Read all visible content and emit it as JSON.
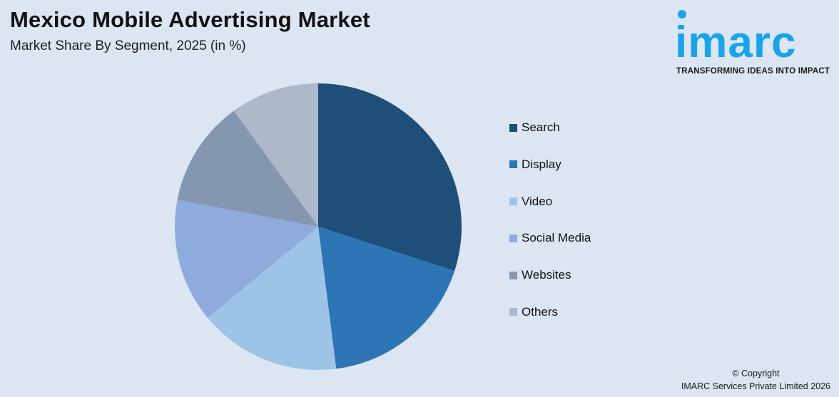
{
  "header": {
    "title": "Mexico Mobile Advertising Market",
    "subtitle": "Market Share By Segment, 2025 (in %)"
  },
  "logo": {
    "word": "imarc",
    "tagline": "TRANSFORMING IDEAS INTO IMPACT",
    "color": "#1aa3e8"
  },
  "chart_data": {
    "type": "pie",
    "title": "Mexico Mobile Advertising Market",
    "subtitle": "Market Share By Segment, 2025 (in %)",
    "categories": [
      "Search",
      "Display",
      "Video",
      "Social Media",
      "Websites",
      "Others"
    ],
    "values": [
      30,
      18,
      16,
      14,
      12,
      10
    ],
    "colors": [
      "#1f4e79",
      "#2e75b6",
      "#9dc3e6",
      "#8faadc",
      "#8497b0",
      "#adb9ca"
    ],
    "legend_position": "right",
    "start_angle": "top, clockwise"
  },
  "footer": {
    "copyright": "© Copyright",
    "company": "IMARC Services Private Limited 2026"
  }
}
